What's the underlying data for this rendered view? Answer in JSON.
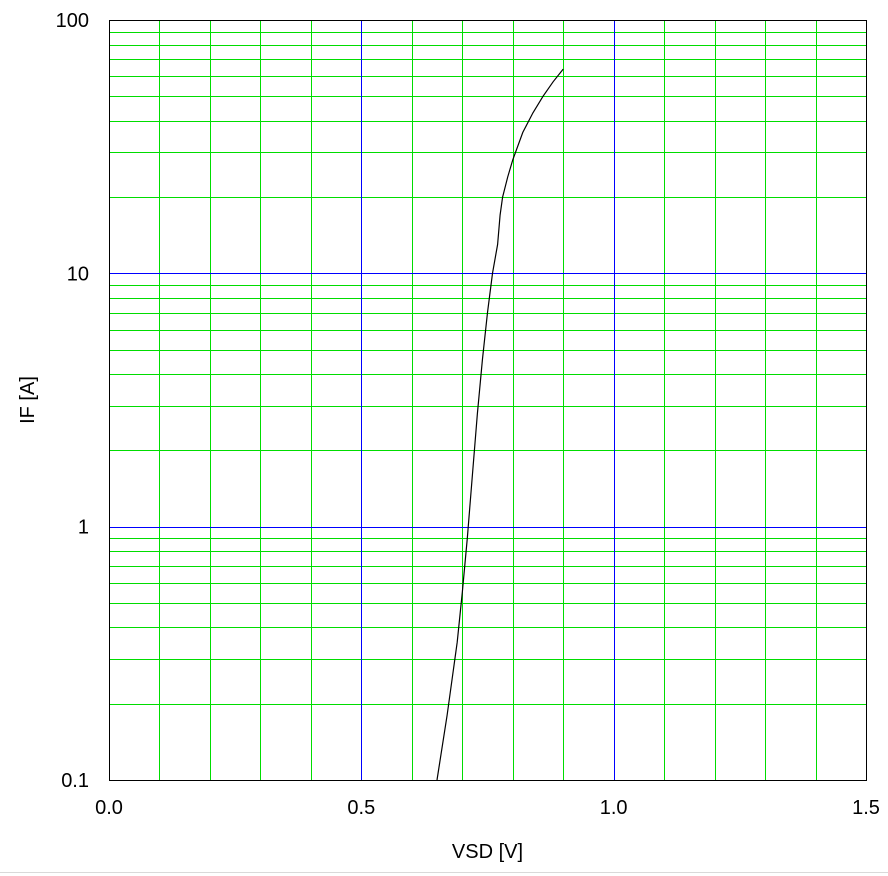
{
  "chart_data": {
    "type": "line",
    "title": "",
    "xlabel": "VSD [V]",
    "ylabel": "IF [A]",
    "xlim": [
      0.0,
      1.5
    ],
    "ylim": [
      0.1,
      100
    ],
    "yscale": "log",
    "grid": true,
    "x_ticks": [
      {
        "value": 0.0,
        "label": "0.0"
      },
      {
        "value": 0.5,
        "label": "0.5"
      },
      {
        "value": 1.0,
        "label": "1.0"
      },
      {
        "value": 1.5,
        "label": "1.5"
      }
    ],
    "y_ticks": [
      {
        "value": 0.1,
        "label": "0.1"
      },
      {
        "value": 1,
        "label": "1"
      },
      {
        "value": 10,
        "label": "10"
      },
      {
        "value": 100,
        "label": "100"
      }
    ],
    "series": [
      {
        "x": [
          0.65,
          0.67,
          0.69,
          0.7,
          0.71,
          0.72,
          0.73,
          0.74,
          0.75,
          0.76,
          0.77,
          0.775,
          0.78,
          0.79,
          0.8,
          0.82,
          0.84,
          0.86,
          0.88,
          0.9
        ],
        "y": [
          0.1,
          0.18,
          0.35,
          0.55,
          0.9,
          1.6,
          2.8,
          4.6,
          7.0,
          10.0,
          13.0,
          17.0,
          20.0,
          24.0,
          28.0,
          36.0,
          43.0,
          50.0,
          57.0,
          64.0
        ]
      }
    ],
    "colors": {
      "series": "#000000",
      "major_grid": "#0000ff",
      "minor_grid": "#00dd00",
      "frame": "#000000"
    }
  }
}
